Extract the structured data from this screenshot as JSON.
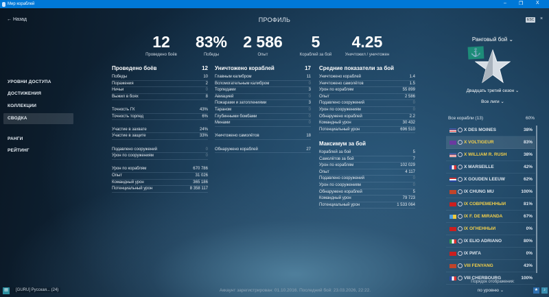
{
  "window": {
    "title": "Мир кораблей",
    "minimize": "–",
    "maximize": "❐",
    "close": "X"
  },
  "header": {
    "back": "← Назад",
    "title": "ПРОФИЛЬ",
    "esc": "ESC",
    "close": "×"
  },
  "top_stats": [
    {
      "value": "12",
      "label": "Проведено боёв"
    },
    {
      "value": "83%",
      "label": "Победы"
    },
    {
      "value": "2 586",
      "label": "Опыт"
    },
    {
      "value": "5",
      "label": "Кораблей за бой"
    },
    {
      "value": "4.25",
      "label": "Уничтожил / уничтожен"
    }
  ],
  "sidebar": {
    "items": [
      {
        "label": "УРОВНИ ДОСТУПА"
      },
      {
        "label": "ДОСТИЖЕНИЯ"
      },
      {
        "label": "КОЛЛЕКЦИИ"
      },
      {
        "label": "СВОДКА",
        "selected": true
      },
      {
        "label": "РАНГИ"
      },
      {
        "label": "РЕЙТИНГ"
      }
    ]
  },
  "col1": {
    "title": "Проведено боёв",
    "value": "12",
    "groups": [
      [
        [
          "Победы",
          "10"
        ],
        [
          "Поражения",
          "2"
        ],
        [
          "Ничьи",
          "0"
        ],
        [
          "Выжил в боях",
          "8"
        ]
      ],
      [
        [
          "Точность ГК",
          "43%"
        ],
        [
          "Точность торпед",
          "6%"
        ]
      ],
      [
        [
          "Участие в захвате",
          "24%"
        ],
        [
          "Участие в защите",
          "33%"
        ]
      ],
      [
        [
          "Подавлено сооружений",
          "0"
        ],
        [
          "Урон по сооружениям",
          "0"
        ]
      ],
      [
        [
          "Урон по кораблям",
          "670 786"
        ],
        [
          "Опыт",
          "31 026"
        ],
        [
          "Командный урон",
          "365 186"
        ],
        [
          "Потенциальный урон",
          "8 358 117"
        ]
      ]
    ]
  },
  "col2": {
    "title": "Уничтожено кораблей",
    "value": "17",
    "groups": [
      [
        [
          "Главным калибром",
          "11"
        ],
        [
          "Вспомогательным калибром",
          "0"
        ],
        [
          "Торпедами",
          "3"
        ],
        [
          "Авиацией",
          "0"
        ],
        [
          "Пожарами и затоплениями",
          "3"
        ],
        [
          "Тараном",
          "0"
        ],
        [
          "Глубинными бомбами",
          "0"
        ],
        [
          "Минами",
          "0"
        ]
      ],
      [
        [
          "Уничтожено самолётов",
          "18"
        ]
      ],
      [
        [
          "Обнаружено кораблей",
          "27"
        ]
      ]
    ]
  },
  "col3": {
    "title": "Средние показатели за бой",
    "groups": [
      [
        [
          "Уничтожено кораблей",
          "1.4"
        ],
        [
          "Уничтожено самолётов",
          "1.5"
        ],
        [
          "Урон по кораблям",
          "55 899"
        ],
        [
          "Опыт",
          "2 586"
        ],
        [
          "Подавлено сооружений",
          "0"
        ],
        [
          "Урон по сооружениям",
          "0"
        ],
        [
          "Обнаружено кораблей",
          "2.2"
        ],
        [
          "Командный урон",
          "30 432"
        ],
        [
          "Потенциальный урон",
          "696 510"
        ]
      ]
    ]
  },
  "col4": {
    "title": "Максимум за бой",
    "groups": [
      [
        [
          "Кораблей за бой",
          "5"
        ],
        [
          "Самолётов за бой",
          "7"
        ],
        [
          "Урон по кораблям",
          "102 029"
        ],
        [
          "Опыт",
          "4 117"
        ],
        [
          "Подавлено сооружений",
          "0"
        ],
        [
          "Урон по сооружениям",
          "0"
        ],
        [
          "Обнаружено кораблей",
          "5"
        ],
        [
          "Командный урон",
          "79 723"
        ],
        [
          "Потенциальный урон",
          "1 533 064"
        ]
      ]
    ]
  },
  "right": {
    "mode": "Ранговый бой ⌄",
    "season": "Двадцать третий сезон ⌄",
    "league": "Все лиги ⌄",
    "all_label": "Все корабли (13)",
    "all_pct": "60%",
    "ships": [
      {
        "name": "X DES MOINES",
        "pct": "38%",
        "flag": "usa",
        "premium": false
      },
      {
        "name": "X VOLTIGEUR",
        "pct": "83%",
        "flag": "europe",
        "premium": true,
        "selected": true
      },
      {
        "name": "X WILLIAM R. RUSH",
        "pct": "38%",
        "flag": "usa",
        "premium": true
      },
      {
        "name": "X MARSEILLE",
        "pct": "42%",
        "flag": "france",
        "premium": false
      },
      {
        "name": "X GOUDEN LEEUW",
        "pct": "62%",
        "flag": "netherlands",
        "premium": false
      },
      {
        "name": "IX CHUNG MU",
        "pct": "100%",
        "flag": "panasia",
        "premium": false
      },
      {
        "name": "IX СОВРЕМЕННЫЙ",
        "pct": "81%",
        "flag": "ussr",
        "premium": true
      },
      {
        "name": "IX F. DE MIRANDA",
        "pct": "67%",
        "flag": "panamerica",
        "premium": true
      },
      {
        "name": "IX ОГНЕННЫЙ",
        "pct": "0%",
        "flag": "ussr",
        "premium": true
      },
      {
        "name": "IX ELIO ADRIANO",
        "pct": "80%",
        "flag": "italy",
        "premium": false
      },
      {
        "name": "IX РИГА",
        "pct": "0%",
        "flag": "ussr",
        "premium": false
      },
      {
        "name": "VIII FENYANG",
        "pct": "43%",
        "flag": "panasia",
        "premium": true
      },
      {
        "name": "VIII CHERBOURG",
        "pct": "100%",
        "flag": "france",
        "premium": false
      }
    ],
    "order_label": "Порядок отображения:",
    "order_value": "по уровню ⌄"
  },
  "bottom": {
    "clan": "[GURU] Русская...  (24)",
    "footer": "Аккаунт зарегистрирован: 01.10.2016. Последний бой: 23.03.2026, 22:22."
  },
  "colors": {
    "titlebar": "#0078d7",
    "premium": "#f2cf4a",
    "accent_flag": "#1d8c78"
  }
}
